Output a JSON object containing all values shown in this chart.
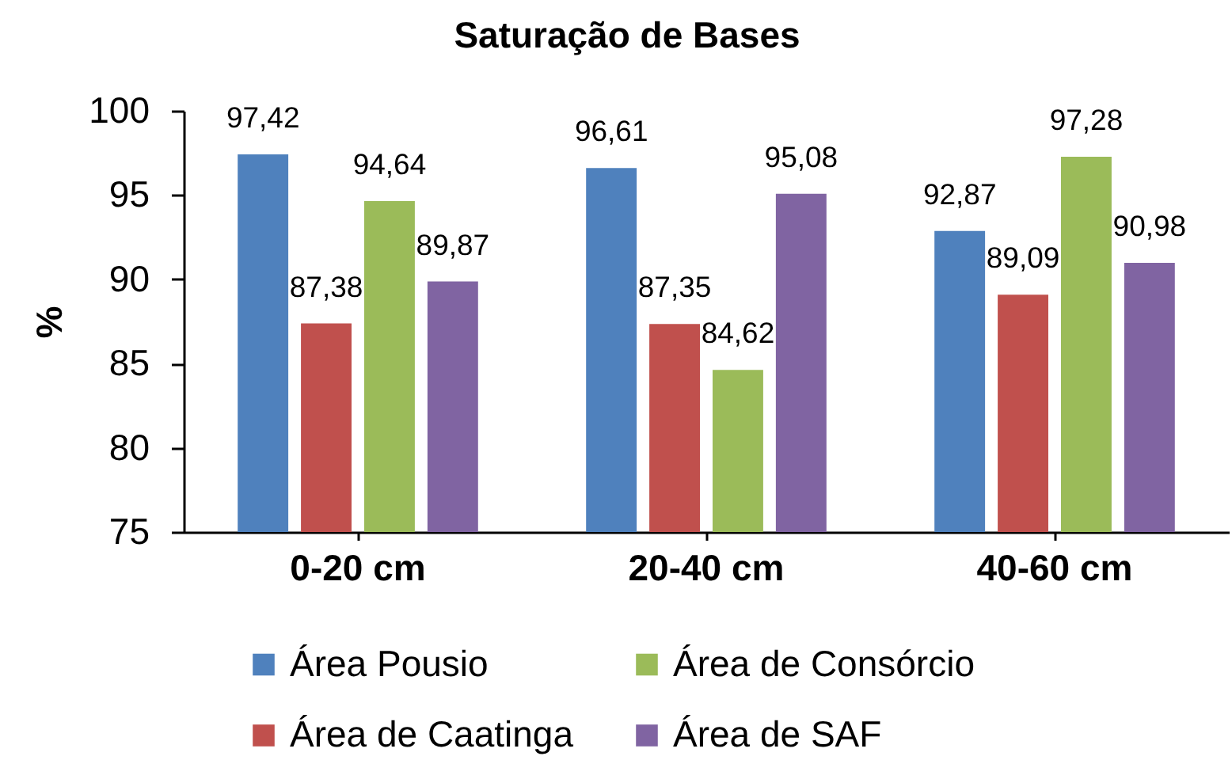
{
  "chart_data": {
    "type": "bar",
    "title": "Saturação de Bases",
    "ylabel": "%",
    "categories": [
      "0-20 cm",
      "20-40 cm",
      "40-60 cm"
    ],
    "series": [
      {
        "name": "Área Pousio",
        "color": "#4f81bd",
        "values": [
          97.42,
          96.61,
          92.87
        ],
        "value_labels": [
          "97,42",
          "96,61",
          "92,87"
        ]
      },
      {
        "name": "Área de Caatinga",
        "color": "#c0504d",
        "values": [
          87.38,
          87.35,
          89.09
        ],
        "value_labels": [
          "87,38",
          "87,35",
          "89,09"
        ]
      },
      {
        "name": "Área de Consórcio",
        "color": "#9bbb59",
        "values": [
          94.64,
          84.62,
          97.28
        ],
        "value_labels": [
          "94,64",
          "84,62",
          "97,28"
        ]
      },
      {
        "name": "Área de SAF",
        "color": "#8064a2",
        "values": [
          89.87,
          95.08,
          90.98
        ],
        "value_labels": [
          "89,87",
          "95,08",
          "90,98"
        ]
      }
    ],
    "ylim": [
      75,
      100
    ],
    "yticks": [
      75,
      80,
      85,
      90,
      95,
      100
    ],
    "legend": "bottom"
  }
}
